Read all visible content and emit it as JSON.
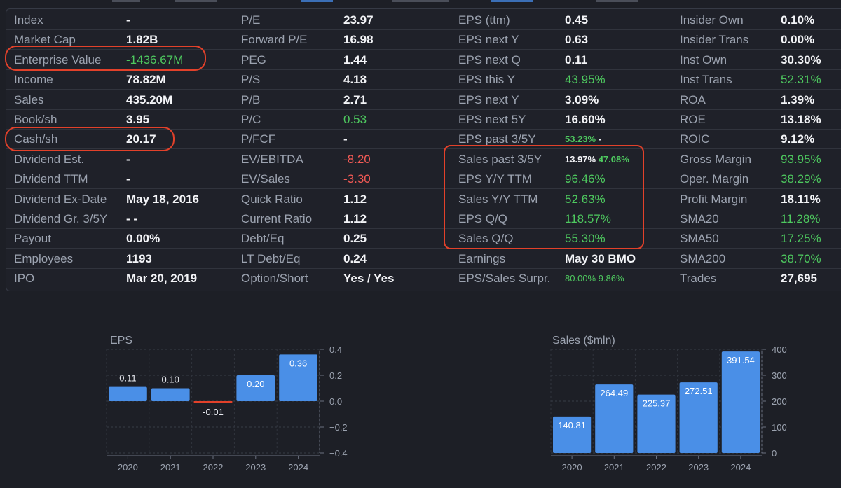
{
  "stats": {
    "rows": [
      [
        [
          "Index",
          "-",
          ""
        ],
        [
          "P/E",
          "23.97",
          ""
        ],
        [
          "EPS (ttm)",
          "0.45",
          ""
        ],
        [
          "Insider Own",
          "0.10%",
          ""
        ]
      ],
      [
        [
          "Market Cap",
          "1.82B",
          ""
        ],
        [
          "Forward P/E",
          "16.98",
          ""
        ],
        [
          "EPS next Y",
          "0.63",
          ""
        ],
        [
          "Insider Trans",
          "0.00%",
          ""
        ]
      ],
      [
        [
          "Enterprise Value",
          "-1436.67M",
          "green"
        ],
        [
          "PEG",
          "1.44",
          ""
        ],
        [
          "EPS next Q",
          "0.11",
          ""
        ],
        [
          "Inst Own",
          "30.30%",
          ""
        ]
      ],
      [
        [
          "Income",
          "78.82M",
          ""
        ],
        [
          "P/S",
          "4.18",
          ""
        ],
        [
          "EPS this Y",
          "43.95%",
          "green"
        ],
        [
          "Inst Trans",
          "52.31%",
          "green"
        ]
      ],
      [
        [
          "Sales",
          "435.20M",
          ""
        ],
        [
          "P/B",
          "2.71",
          ""
        ],
        [
          "EPS next Y",
          "3.09%",
          ""
        ],
        [
          "ROA",
          "1.39%",
          ""
        ]
      ],
      [
        [
          "Book/sh",
          "3.95",
          ""
        ],
        [
          "P/C",
          "0.53",
          "green"
        ],
        [
          "EPS next 5Y",
          "16.60%",
          ""
        ],
        [
          "ROE",
          "13.18%",
          ""
        ]
      ],
      [
        [
          "Cash/sh",
          "20.17",
          ""
        ],
        [
          "P/FCF",
          "-",
          ""
        ],
        [
          "EPS past 3/5Y",
          "53.23% -",
          "split"
        ],
        [
          "ROIC",
          "9.12%",
          ""
        ]
      ],
      [
        [
          "Dividend Est.",
          "-",
          ""
        ],
        [
          "EV/EBITDA",
          "-8.20",
          "red"
        ],
        [
          "Sales past 3/5Y",
          "13.97% 47.08%",
          "split2"
        ],
        [
          "Gross Margin",
          "93.95%",
          "green"
        ]
      ],
      [
        [
          "Dividend TTM",
          "-",
          ""
        ],
        [
          "EV/Sales",
          "-3.30",
          "red"
        ],
        [
          "EPS Y/Y TTM",
          "96.46%",
          "green"
        ],
        [
          "Oper. Margin",
          "38.29%",
          "green"
        ]
      ],
      [
        [
          "Dividend Ex-Date",
          "May 18, 2016",
          ""
        ],
        [
          "Quick Ratio",
          "1.12",
          ""
        ],
        [
          "Sales Y/Y TTM",
          "52.63%",
          "green"
        ],
        [
          "Profit Margin",
          "18.11%",
          ""
        ]
      ],
      [
        [
          "Dividend Gr. 3/5Y",
          "- -",
          ""
        ],
        [
          "Current Ratio",
          "1.12",
          ""
        ],
        [
          "EPS Q/Q",
          "118.57%",
          "green"
        ],
        [
          "SMA20",
          "11.28%",
          "green"
        ]
      ],
      [
        [
          "Payout",
          "0.00%",
          ""
        ],
        [
          "Debt/Eq",
          "0.25",
          ""
        ],
        [
          "Sales Q/Q",
          "55.30%",
          "green"
        ],
        [
          "SMA50",
          "17.25%",
          "green"
        ]
      ],
      [
        [
          "Employees",
          "1193",
          ""
        ],
        [
          "LT Debt/Eq",
          "0.24",
          ""
        ],
        [
          "Earnings",
          "May 30 BMO",
          ""
        ],
        [
          "SMA200",
          "38.70%",
          "green"
        ]
      ],
      [
        [
          "IPO",
          "Mar 20, 2019",
          ""
        ],
        [
          "Option/Short",
          "Yes / Yes",
          ""
        ],
        [
          "EPS/Sales Surpr.",
          "80.00% 9.86%",
          "greensmall"
        ],
        [
          "Trades",
          "27,695",
          ""
        ]
      ]
    ]
  },
  "colors": {
    "green": "#4ec95f",
    "red": "#f25a55",
    "bar": "#4a8fe7",
    "highlight": "#e2412a"
  },
  "chart_data": [
    {
      "type": "bar",
      "title": "EPS",
      "categories": [
        "2020",
        "2021",
        "2022",
        "2023",
        "2024"
      ],
      "values": [
        0.11,
        0.1,
        -0.01,
        0.2,
        0.36
      ],
      "labels": [
        "0.11",
        "0.10",
        "-0.01",
        "0.20",
        "0.36"
      ],
      "ylim": [
        -0.4,
        0.4
      ],
      "yticks": [
        "0.4",
        "0.2",
        "0.0",
        "−0.2",
        "−0.4"
      ],
      "grid": true
    },
    {
      "type": "bar",
      "title": "Sales ($mln)",
      "categories": [
        "2020",
        "2021",
        "2022",
        "2023",
        "2024"
      ],
      "values": [
        140.81,
        264.49,
        225.37,
        272.51,
        391.54
      ],
      "labels": [
        "140.81",
        "264.49",
        "225.37",
        "272.51",
        "391.54"
      ],
      "ylim": [
        0,
        400
      ],
      "yticks": [
        "400",
        "300",
        "200",
        "100",
        "0"
      ],
      "grid": true
    }
  ]
}
